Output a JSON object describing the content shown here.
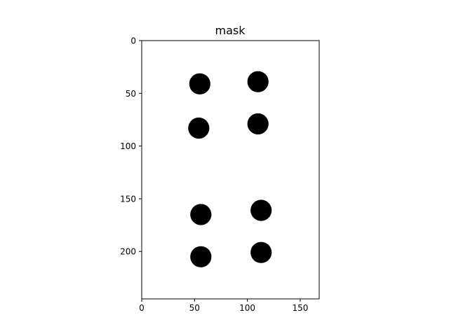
{
  "chart_data": {
    "type": "heatmap",
    "title": "mask",
    "xlabel": "",
    "ylabel": "",
    "xlim": [
      0,
      168
    ],
    "ylim": [
      245,
      0
    ],
    "x_ticks": [
      0,
      50,
      100,
      150
    ],
    "y_ticks": [
      0,
      50,
      100,
      150,
      200
    ],
    "x_tick_labels": [
      "0",
      "50",
      "100",
      "150"
    ],
    "y_tick_labels": [
      "0",
      "50",
      "100",
      "150",
      "200"
    ],
    "grid": false,
    "colormap": "binary",
    "background_color": "#ffffff",
    "mask_color": "#000000",
    "blobs": [
      {
        "x": 55,
        "y": 41,
        "r": 10
      },
      {
        "x": 110,
        "y": 39,
        "r": 10
      },
      {
        "x": 54,
        "y": 83,
        "r": 10
      },
      {
        "x": 110,
        "y": 79,
        "r": 10
      },
      {
        "x": 56,
        "y": 165,
        "r": 10
      },
      {
        "x": 113,
        "y": 161,
        "r": 10
      },
      {
        "x": 56,
        "y": 205,
        "r": 10
      },
      {
        "x": 113,
        "y": 201,
        "r": 10
      }
    ]
  }
}
